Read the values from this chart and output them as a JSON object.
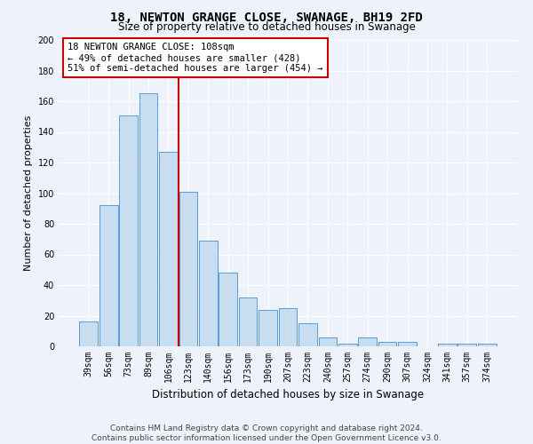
{
  "title": "18, NEWTON GRANGE CLOSE, SWANAGE, BH19 2FD",
  "subtitle": "Size of property relative to detached houses in Swanage",
  "xlabel": "Distribution of detached houses by size in Swanage",
  "ylabel": "Number of detached properties",
  "categories": [
    "39sqm",
    "56sqm",
    "73sqm",
    "89sqm",
    "106sqm",
    "123sqm",
    "140sqm",
    "156sqm",
    "173sqm",
    "190sqm",
    "207sqm",
    "223sqm",
    "240sqm",
    "257sqm",
    "274sqm",
    "290sqm",
    "307sqm",
    "324sqm",
    "341sqm",
    "357sqm",
    "374sqm"
  ],
  "values": [
    16,
    92,
    151,
    165,
    127,
    101,
    69,
    48,
    32,
    24,
    25,
    15,
    6,
    2,
    6,
    3,
    3,
    0,
    2,
    2,
    2
  ],
  "bar_color": "#c8ddf0",
  "bar_edge_color": "#5b9bd5",
  "highlight_index": 4,
  "highlight_line_color": "#cc0000",
  "annotation_line1": "18 NEWTON GRANGE CLOSE: 108sqm",
  "annotation_line2": "← 49% of detached houses are smaller (428)",
  "annotation_line3": "51% of semi-detached houses are larger (454) →",
  "annotation_box_color": "#ffffff",
  "annotation_box_edge_color": "#cc0000",
  "ylim": [
    0,
    200
  ],
  "yticks": [
    0,
    20,
    40,
    60,
    80,
    100,
    120,
    140,
    160,
    180,
    200
  ],
  "footer_line1": "Contains HM Land Registry data © Crown copyright and database right 2024.",
  "footer_line2": "Contains public sector information licensed under the Open Government Licence v3.0.",
  "background_color": "#eef2fa",
  "grid_color": "#ffffff",
  "title_fontsize": 10,
  "subtitle_fontsize": 8.5,
  "tick_fontsize": 7,
  "ylabel_fontsize": 8,
  "xlabel_fontsize": 8.5,
  "annotation_fontsize": 7.5,
  "footer_fontsize": 6.5
}
